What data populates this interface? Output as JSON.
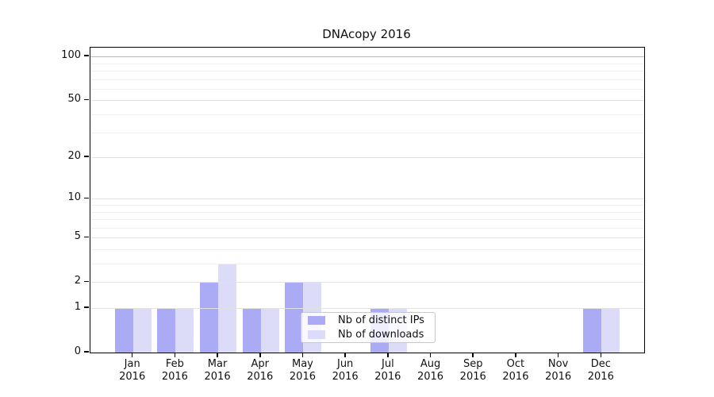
{
  "chart_data": {
    "type": "bar",
    "title": "DNAcopy 2016",
    "x_month_labels": [
      "Jan",
      "Feb",
      "Mar",
      "Apr",
      "May",
      "Jun",
      "Jul",
      "Aug",
      "Sep",
      "Oct",
      "Nov",
      "Dec"
    ],
    "x_year_label": "2016",
    "series": [
      {
        "name": "Nb of distinct IPs",
        "color": "#ababf5",
        "values": [
          1,
          1,
          2,
          1,
          2,
          0,
          1,
          0,
          0,
          0,
          0,
          1
        ]
      },
      {
        "name": "Nb of downloads",
        "color": "#dcdcf8",
        "values": [
          1,
          1,
          3,
          1,
          2,
          0,
          1,
          0,
          0,
          0,
          0,
          1
        ]
      }
    ],
    "y_scale": "log1p",
    "ylim": [
      0,
      115
    ],
    "y_ticks": [
      0,
      1,
      2,
      5,
      10,
      20,
      50,
      100
    ],
    "y_minor_gridlines": [
      3,
      4,
      6,
      7,
      8,
      9,
      30,
      40,
      60,
      70,
      80,
      90
    ],
    "grid": true,
    "legend_position": "inside lower-center"
  },
  "colors": {
    "grid_major": "#e2e2e2",
    "grid_minor": "#efefef",
    "grid_top": "#b9b9b9",
    "axis": "#000000",
    "text": "#111111",
    "background": "#ffffff"
  }
}
